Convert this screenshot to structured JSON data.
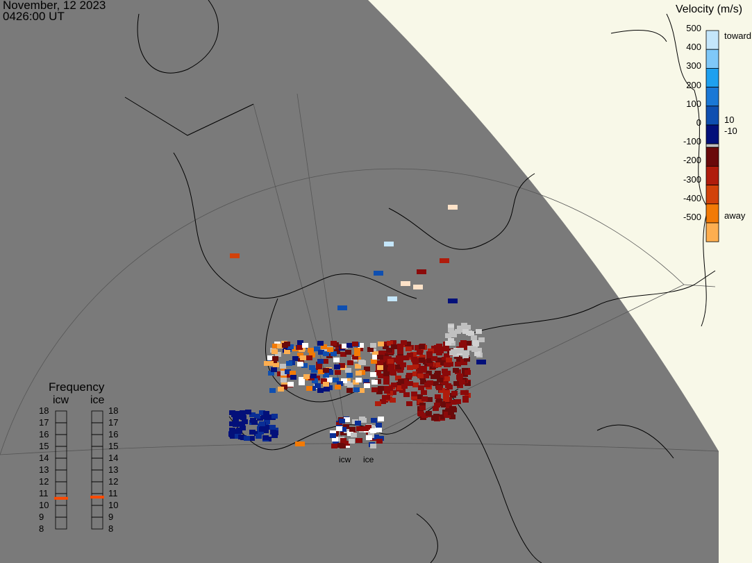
{
  "header": {
    "date": "November, 12 2023",
    "time": "0426:00 UT"
  },
  "colorbar": {
    "title": "Velocity (m/s)",
    "ticks": [
      "500",
      "400",
      "300",
      "200",
      "100",
      "0",
      "-100",
      "-200",
      "-300",
      "-400",
      "-500"
    ],
    "label_toward": "toward",
    "label_away": "away",
    "label_pos10": "10",
    "label_neg10": "-10",
    "colors_toward": [
      "#c4e6fb",
      "#7fc8f8",
      "#1ea0ef",
      "#1a78d6",
      "#0f4fb0",
      "#0a2e96",
      "#03107a"
    ],
    "colors_away": [
      "#6a0a0a",
      "#8b0a0a",
      "#b01c0c",
      "#d2420a",
      "#f27a06",
      "#fdae50",
      "#fde2c8"
    ],
    "ground_scatter_color": "#c0c0c0",
    "map_background": "#7a7a7a",
    "outside_color": "#f8f8e8"
  },
  "frequency": {
    "title": "Frequency",
    "radars": [
      {
        "name": "icw",
        "value_mhz": 10.6
      },
      {
        "name": "ice",
        "value_mhz": 10.7
      }
    ],
    "ticks": [
      "18",
      "17",
      "16",
      "15",
      "14",
      "13",
      "12",
      "11",
      "10",
      "9",
      "8"
    ],
    "range": [
      8,
      18
    ],
    "marker_color": "#ff4a00"
  },
  "radar_sites": [
    {
      "name": "icw"
    },
    {
      "name": "ice"
    }
  ]
}
